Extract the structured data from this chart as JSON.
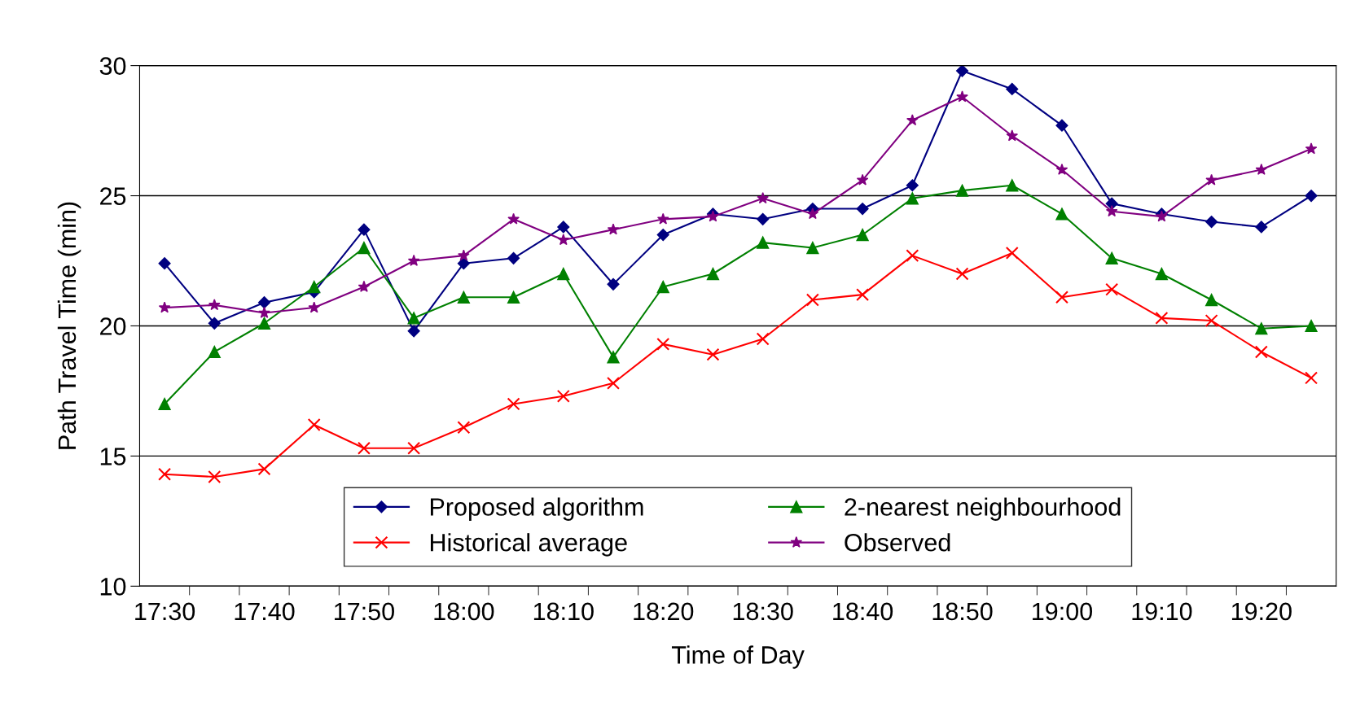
{
  "chart_data": {
    "type": "line",
    "xlabel": "Time of Day",
    "ylabel": "Path Travel Time (min)",
    "categories": [
      "17:30",
      null,
      "17:40",
      null,
      "17:50",
      null,
      "18:00",
      null,
      "18:10",
      null,
      "18:20",
      null,
      "18:30",
      null,
      "18:40",
      null,
      "18:50",
      null,
      "19:00",
      null,
      "19:10",
      null,
      "19:20",
      null
    ],
    "series": [
      {
        "name": "Proposed algorithm",
        "color": "#000080",
        "marker": "diamond",
        "values": [
          22.4,
          20.1,
          20.9,
          21.3,
          23.7,
          19.8,
          22.4,
          22.6,
          23.8,
          21.6,
          23.5,
          24.3,
          24.1,
          24.5,
          24.5,
          25.4,
          29.8,
          29.1,
          27.7,
          24.7,
          24.3,
          24.0,
          23.8,
          25.0
        ]
      },
      {
        "name": "2-nearest neighbourhood",
        "color": "#008000",
        "marker": "triangle",
        "values": [
          17.0,
          19.0,
          20.1,
          21.5,
          23.0,
          20.3,
          21.1,
          21.1,
          22.0,
          18.8,
          21.5,
          22.0,
          23.2,
          23.0,
          23.5,
          24.9,
          25.2,
          25.4,
          24.3,
          22.6,
          22.0,
          21.0,
          19.9,
          20.0
        ]
      },
      {
        "name": "Historical average",
        "color": "#ff0000",
        "marker": "cross",
        "values": [
          14.3,
          14.2,
          14.5,
          16.2,
          15.3,
          15.3,
          16.1,
          17.0,
          17.3,
          17.8,
          19.3,
          18.9,
          19.5,
          21.0,
          21.2,
          22.7,
          22.0,
          22.8,
          21.1,
          21.4,
          20.3,
          20.2,
          19.0,
          18.0
        ]
      },
      {
        "name": "Observed",
        "color": "#800080",
        "marker": "star",
        "values": [
          20.7,
          20.8,
          20.5,
          20.7,
          21.5,
          22.5,
          22.7,
          24.1,
          23.3,
          23.7,
          24.1,
          24.2,
          24.9,
          24.3,
          25.6,
          27.9,
          28.8,
          27.3,
          26.0,
          24.4,
          24.2,
          25.6,
          26.0,
          26.8
        ]
      }
    ],
    "ylim": [
      10,
      30
    ],
    "yticks": [
      10,
      15,
      20,
      25,
      30
    ],
    "grid": "y",
    "legend": "bottom",
    "line_style": "solid"
  }
}
